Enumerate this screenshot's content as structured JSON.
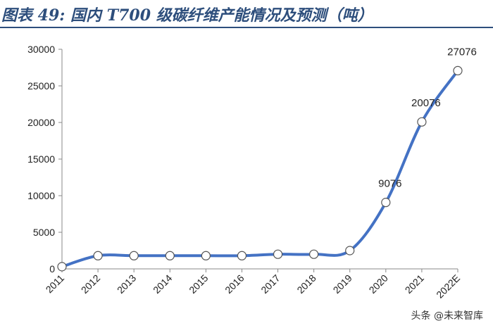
{
  "header": {
    "title": "图表 49:  国内 T700 级碳纤维产能情况及预测（吨）"
  },
  "watermark": "头条 @未来智库",
  "colors": {
    "line": "#4472c4",
    "title": "#2d4e7c",
    "marker_fill": "#ffffff"
  },
  "chart_data": {
    "type": "line",
    "title": "",
    "xlabel": "",
    "ylabel": "",
    "categories": [
      "2011",
      "2012",
      "2013",
      "2014",
      "2015",
      "2016",
      "2017",
      "2018",
      "2019",
      "2020",
      "2021",
      "2022E"
    ],
    "series": [
      {
        "values": [
          300,
          1800,
          1800,
          1800,
          1800,
          1800,
          2000,
          2000,
          2500,
          9076,
          20076,
          27076
        ]
      }
    ],
    "data_labels": [
      {
        "index": 9,
        "text": "9076"
      },
      {
        "index": 10,
        "text": "20076"
      },
      {
        "index": 11,
        "text": "27076"
      }
    ],
    "ylim": [
      0,
      30000
    ],
    "yticks": [
      0,
      5000,
      10000,
      15000,
      20000,
      25000,
      30000
    ],
    "ytick_labels": [
      "0",
      "5000",
      "10000",
      "15000",
      "20000",
      "25000",
      "30000"
    ],
    "grid": false,
    "smooth": true
  }
}
